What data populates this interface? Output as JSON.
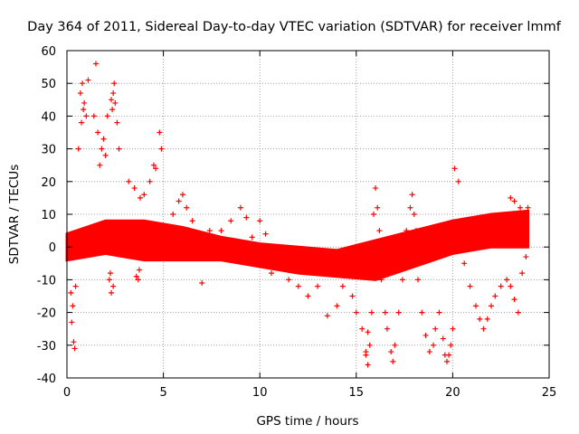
{
  "chart_data": {
    "type": "scatter",
    "title": "Day 364 of 2011, Sidereal Day-to-day VTEC variation (SDTVAR) for receiver lmmf",
    "xlabel": "GPS time / hours",
    "ylabel": "SDTVAR / TECUs",
    "xlim": [
      0,
      25
    ],
    "ylim": [
      -40,
      60
    ],
    "xticks": [
      0,
      5,
      10,
      15,
      20,
      25
    ],
    "yticks": [
      -40,
      -30,
      -20,
      -10,
      0,
      10,
      20,
      30,
      40,
      50,
      60
    ],
    "grid": true,
    "marker": "+",
    "series": [
      {
        "name": "SDTVAR",
        "color": "#ff0000",
        "points": [
          [
            0.2,
            -14
          ],
          [
            0.3,
            -18
          ],
          [
            0.35,
            -29
          ],
          [
            0.4,
            -31
          ],
          [
            0.25,
            -23
          ],
          [
            0.45,
            -12
          ],
          [
            0.7,
            47
          ],
          [
            0.8,
            50
          ],
          [
            0.9,
            44
          ],
          [
            1.0,
            40
          ],
          [
            1.1,
            51
          ],
          [
            0.6,
            30
          ],
          [
            0.75,
            38
          ],
          [
            0.85,
            42
          ],
          [
            1.5,
            56
          ],
          [
            1.4,
            40
          ],
          [
            1.6,
            35
          ],
          [
            1.8,
            30
          ],
          [
            2.0,
            28
          ],
          [
            1.9,
            33
          ],
          [
            1.7,
            25
          ],
          [
            2.1,
            40
          ],
          [
            2.3,
            45
          ],
          [
            2.4,
            47
          ],
          [
            2.5,
            44
          ],
          [
            2.6,
            38
          ],
          [
            2.7,
            30
          ],
          [
            2.45,
            50
          ],
          [
            2.35,
            42
          ],
          [
            2.2,
            -10
          ],
          [
            2.3,
            -14
          ],
          [
            2.4,
            -12
          ],
          [
            2.25,
            -8
          ],
          [
            3.2,
            20
          ],
          [
            3.5,
            18
          ],
          [
            3.8,
            15
          ],
          [
            4.0,
            16
          ],
          [
            4.3,
            20
          ],
          [
            4.5,
            25
          ],
          [
            4.6,
            24
          ],
          [
            4.8,
            35
          ],
          [
            4.9,
            30
          ],
          [
            3.6,
            -9
          ],
          [
            3.7,
            -10
          ],
          [
            3.75,
            -7
          ],
          [
            5.5,
            10
          ],
          [
            5.8,
            14
          ],
          [
            6.0,
            16
          ],
          [
            6.2,
            12
          ],
          [
            6.5,
            8
          ],
          [
            6.8,
            -3
          ],
          [
            7.0,
            -11
          ],
          [
            7.4,
            5
          ],
          [
            8.0,
            5
          ],
          [
            8.5,
            8
          ],
          [
            9.0,
            12
          ],
          [
            9.3,
            9
          ],
          [
            9.6,
            3
          ],
          [
            10.0,
            8
          ],
          [
            10.3,
            4
          ],
          [
            10.6,
            -8
          ],
          [
            11.0,
            -6
          ],
          [
            11.5,
            -10
          ],
          [
            12.0,
            -12
          ],
          [
            12.5,
            -15
          ],
          [
            13.0,
            -12
          ],
          [
            13.5,
            -21
          ],
          [
            14.0,
            -18
          ],
          [
            14.3,
            -12
          ],
          [
            14.6,
            -5
          ],
          [
            14.8,
            -15
          ],
          [
            15.0,
            -20
          ],
          [
            15.3,
            -25
          ],
          [
            15.5,
            -32
          ],
          [
            15.6,
            -36
          ],
          [
            15.7,
            -30
          ],
          [
            15.8,
            -20
          ],
          [
            15.6,
            -26
          ],
          [
            15.5,
            -33
          ],
          [
            16.0,
            18
          ],
          [
            16.1,
            12
          ],
          [
            16.2,
            5
          ],
          [
            15.9,
            10
          ],
          [
            16.3,
            -10
          ],
          [
            16.5,
            -20
          ],
          [
            16.6,
            -25
          ],
          [
            16.8,
            -32
          ],
          [
            16.9,
            -35
          ],
          [
            17.0,
            -30
          ],
          [
            17.2,
            -20
          ],
          [
            17.4,
            -10
          ],
          [
            17.6,
            5
          ],
          [
            17.8,
            12
          ],
          [
            17.9,
            16
          ],
          [
            18.0,
            10
          ],
          [
            18.1,
            5
          ],
          [
            18.2,
            -10
          ],
          [
            18.4,
            -20
          ],
          [
            18.6,
            -27
          ],
          [
            18.8,
            -32
          ],
          [
            19.0,
            -30
          ],
          [
            19.1,
            -25
          ],
          [
            19.3,
            -20
          ],
          [
            19.5,
            -28
          ],
          [
            19.6,
            -33
          ],
          [
            19.7,
            -35
          ],
          [
            19.8,
            -33
          ],
          [
            19.9,
            -30
          ],
          [
            20.0,
            -25
          ],
          [
            20.1,
            24
          ],
          [
            20.3,
            20
          ],
          [
            20.6,
            -5
          ],
          [
            20.9,
            -12
          ],
          [
            21.2,
            -18
          ],
          [
            21.4,
            -22
          ],
          [
            21.6,
            -25
          ],
          [
            21.8,
            -22
          ],
          [
            22.0,
            -18
          ],
          [
            22.2,
            -15
          ],
          [
            22.5,
            -12
          ],
          [
            22.8,
            -10
          ],
          [
            23.0,
            -12
          ],
          [
            23.2,
            -16
          ],
          [
            23.4,
            -20
          ],
          [
            23.6,
            -8
          ],
          [
            23.8,
            -3
          ],
          [
            22.5,
            8
          ],
          [
            23.0,
            15
          ],
          [
            23.2,
            14
          ],
          [
            23.5,
            12
          ],
          [
            23.7,
            10
          ],
          [
            23.9,
            12
          ]
        ],
        "bands": [
          {
            "description": "dense baseline band",
            "x": [
              0.0,
              2.0,
              4.0,
              6.0,
              8.0,
              10.0,
              12.0,
              14.0,
              16.0,
              18.0,
              20.0,
              22.0,
              23.9
            ],
            "low": [
              -4,
              -2,
              -4,
              -4,
              -4,
              -6,
              -8,
              -9,
              -10,
              -6,
              -2,
              0,
              0
            ],
            "high": [
              4,
              8,
              8,
              6,
              3,
              1,
              0,
              -1,
              2,
              5,
              8,
              10,
              11
            ]
          }
        ]
      }
    ]
  }
}
